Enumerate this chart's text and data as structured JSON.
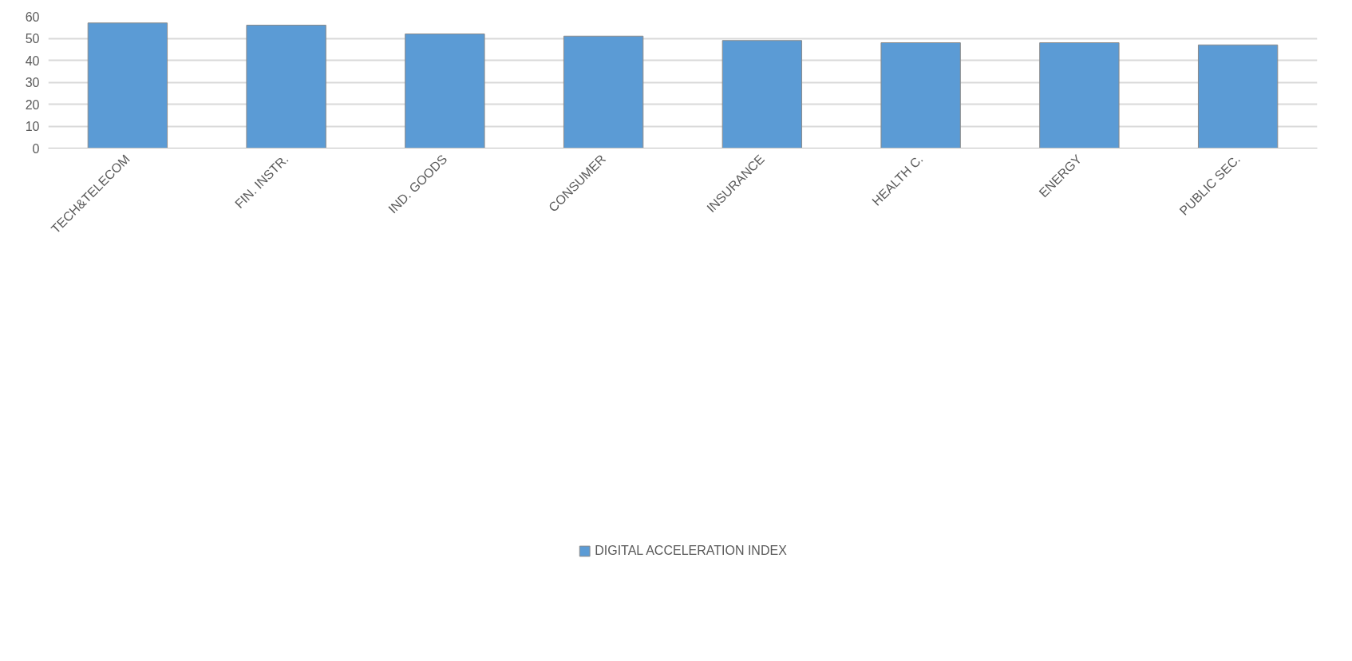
{
  "chart_data": {
    "type": "bar",
    "categories": [
      "TECH&TELECOM",
      "FIN. INSTR.",
      "IND. GOODS",
      "CONSUMER",
      "INSURANCE",
      "HEALTH C.",
      "ENERGY",
      "PUBLIC SEC."
    ],
    "series": [
      {
        "name": "DIGITAL ACCELERATION INDEX",
        "color": "#5b9bd5",
        "values": [
          57,
          56,
          52,
          51,
          49,
          48,
          48,
          47
        ]
      }
    ],
    "ylim": [
      0,
      60
    ],
    "yticks": [
      0,
      10,
      20,
      30,
      40,
      50,
      60
    ],
    "grid": "y",
    "legend": "bottom"
  }
}
